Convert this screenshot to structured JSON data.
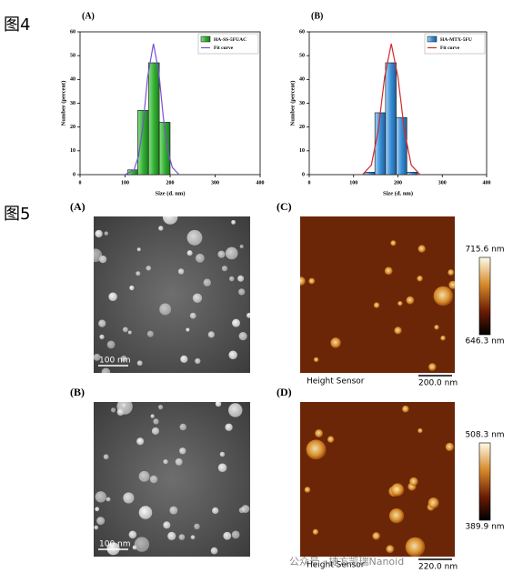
{
  "figure_labels": [
    "图4",
    "图5"
  ],
  "chart_data": [
    {
      "type": "histogram",
      "title": "(A)",
      "x_label": "Size (d. nm)",
      "y_label": "Number (percent)",
      "bins": [
        106,
        128,
        152,
        176,
        200
      ],
      "xlim": [
        0,
        400
      ],
      "ylim": [
        0,
        60
      ],
      "xticks": [
        0,
        100,
        200,
        300,
        400
      ],
      "yticks": [
        0,
        10,
        20,
        30,
        40,
        50,
        60
      ],
      "legend": "upper right",
      "series": [
        {
          "name": "HA-SS-5FUAC",
          "color": "#33b233",
          "values": [
            2,
            27,
            47,
            22
          ]
        },
        {
          "name": "Fit curve",
          "type": "line",
          "color": "#7b4fd6",
          "x": [
            100,
            120,
            130,
            140,
            150,
            163,
            175,
            185,
            195,
            205,
            220
          ],
          "values": [
            0,
            2,
            8,
            21,
            41,
            55,
            43,
            24,
            10,
            3,
            0
          ]
        }
      ]
    },
    {
      "type": "histogram",
      "title": "(B)",
      "x_label": "Size (d. nm)",
      "y_label": "Number (percent)",
      "bins": [
        125,
        148,
        172,
        196,
        220,
        244
      ],
      "xlim": [
        0,
        400
      ],
      "ylim": [
        0,
        60
      ],
      "xticks": [
        0,
        100,
        200,
        300,
        400
      ],
      "yticks": [
        0,
        10,
        20,
        30,
        40,
        50,
        60
      ],
      "legend": "upper right",
      "series": [
        {
          "name": "HA-MTX-5FU",
          "color": "#3a8fd6",
          "values": [
            1,
            26,
            47,
            24,
            1
          ]
        },
        {
          "name": "Fit curve",
          "type": "line",
          "color": "#d62828",
          "x": [
            120,
            140,
            155,
            170,
            185,
            200,
            215,
            230,
            250
          ],
          "values": [
            0,
            4,
            18,
            41,
            55,
            41,
            18,
            4,
            0
          ]
        }
      ]
    }
  ],
  "panels": [
    {
      "label": "(A)",
      "scale_bar": "100 nm"
    },
    {
      "label": "(C)",
      "sensor": "Height Sensor",
      "scale_bar": "200.0 nm",
      "colorbar_max": "715.6 nm",
      "colorbar_min": "646.3 nm"
    },
    {
      "label": "(B)",
      "scale_bar": "100 nm"
    },
    {
      "label": "(D)",
      "sensor": "Height Sensor",
      "scale_bar": "220.0 nm",
      "colorbar_max": "508.3 nm",
      "colorbar_min": "389.9 nm"
    }
  ],
  "watermark": "公众号 · 捷方凯瑞Nanoid"
}
